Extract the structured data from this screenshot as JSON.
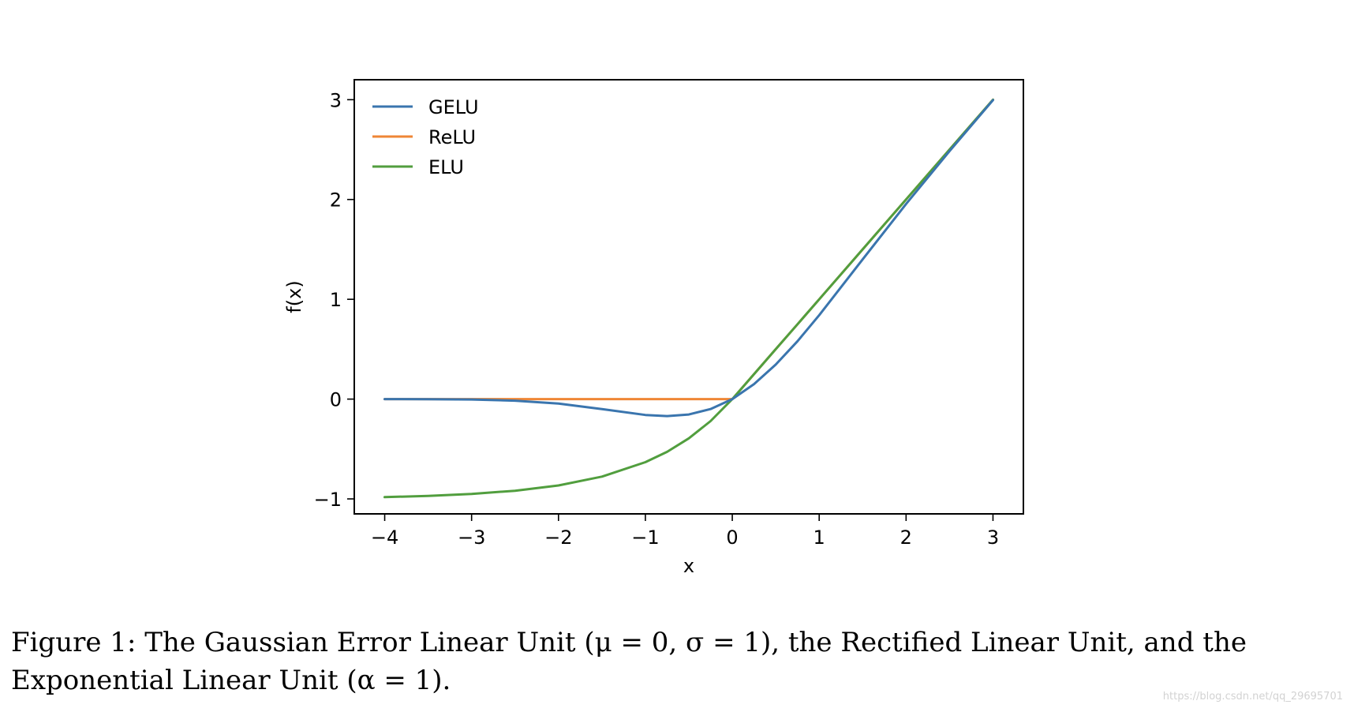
{
  "figure": {
    "caption_line1": "Figure 1: The Gaussian Error Linear Unit (μ = 0, σ = 1), the Rectified Linear Unit, and the",
    "caption_line2": "Exponential Linear Unit (α = 1).",
    "watermark": "https://blog.csdn.net/qq_29695701"
  },
  "chart_data": {
    "type": "line",
    "title": "",
    "xlabel": "x",
    "ylabel": "f(x)",
    "xlim": [
      -4.35,
      3.35
    ],
    "ylim": [
      -1.15,
      3.2
    ],
    "xticks": [
      -4,
      -3,
      -2,
      -1,
      0,
      1,
      2,
      3
    ],
    "xtick_labels": [
      "−4",
      "−3",
      "−2",
      "−1",
      "0",
      "1",
      "2",
      "3"
    ],
    "yticks": [
      -1,
      0,
      1,
      2,
      3
    ],
    "ytick_labels": [
      "−1",
      "0",
      "1",
      "2",
      "3"
    ],
    "grid": false,
    "legend": "upper-left",
    "x": [
      -4.0,
      -3.5,
      -3.0,
      -2.5,
      -2.0,
      -1.5,
      -1.0,
      -0.75,
      -0.5,
      -0.25,
      0.0,
      0.25,
      0.5,
      0.75,
      1.0,
      1.5,
      2.0,
      2.5,
      3.0
    ],
    "series": [
      {
        "name": "GELU",
        "color": "#3a75ae",
        "values": [
          0.0,
          -0.001,
          -0.004,
          -0.016,
          -0.045,
          -0.1,
          -0.159,
          -0.17,
          -0.154,
          -0.1,
          0.0,
          0.15,
          0.346,
          0.58,
          0.841,
          1.4,
          1.955,
          2.485,
          2.996
        ]
      },
      {
        "name": "ReLU",
        "color": "#ef8636",
        "values": [
          0.0,
          0.0,
          0.0,
          0.0,
          0.0,
          0.0,
          0.0,
          0.0,
          0.0,
          0.0,
          0.0,
          0.25,
          0.5,
          0.75,
          1.0,
          1.5,
          2.0,
          2.5,
          3.0
        ]
      },
      {
        "name": "ELU",
        "color": "#519e3e",
        "values": [
          -0.982,
          -0.97,
          -0.95,
          -0.918,
          -0.865,
          -0.777,
          -0.632,
          -0.528,
          -0.393,
          -0.221,
          0.0,
          0.25,
          0.5,
          0.75,
          1.0,
          1.5,
          2.0,
          2.5,
          3.0
        ]
      }
    ]
  }
}
